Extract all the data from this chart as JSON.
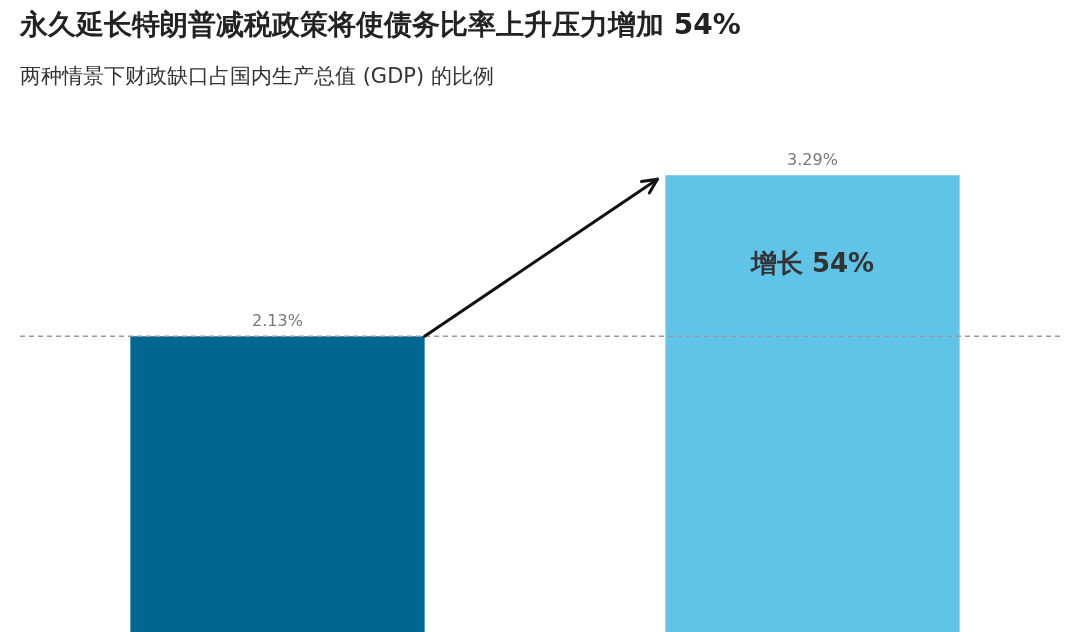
{
  "chart_data": {
    "type": "bar",
    "title": "永久延长特朗普减税政策将使债务比率上升压力增加 54%",
    "subtitle": "两种情景下财政缺口占国内生产总值 (GDP) 的比例",
    "categories": [
      null,
      null
    ],
    "values": [
      2.13,
      3.29
    ],
    "colors": [
      "#006890",
      "#5fc4e8"
    ],
    "value_labels": [
      "2.13%",
      "3.29%"
    ],
    "ref_lines": [
      {
        "axis": "y",
        "value": 2.13,
        "color": "#999999",
        "line_style": "dashed"
      }
    ],
    "annotations": [
      "增长 54%"
    ],
    "legend": false
  }
}
